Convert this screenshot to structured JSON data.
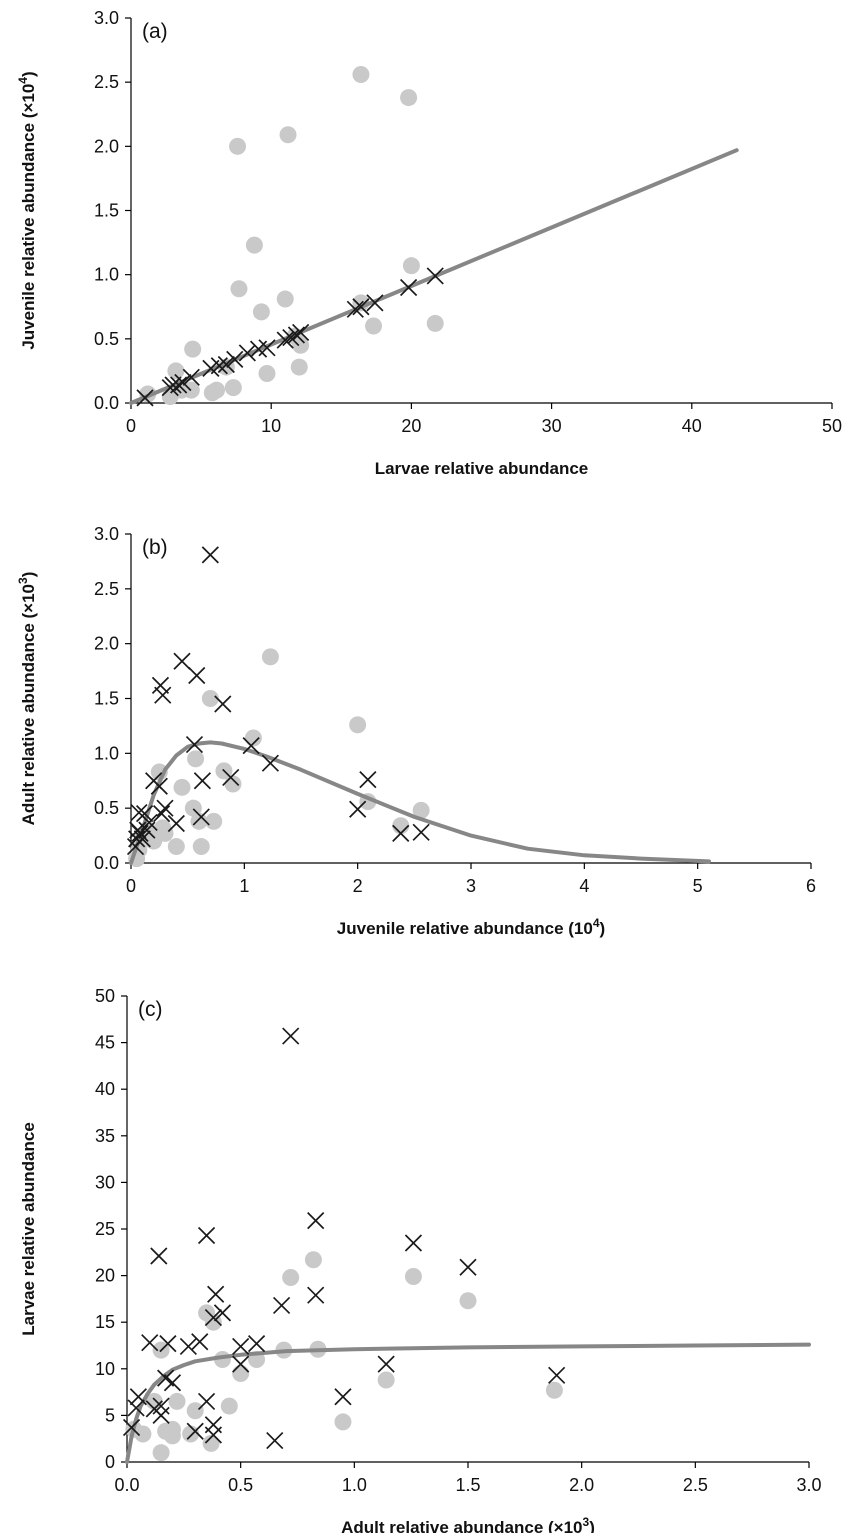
{
  "chart_data": [
    {
      "type": "scatter",
      "panel_label": "(a)",
      "xlabel": "Larvae relative abundance",
      "ylabel": "Juvenile relative abundance (×10",
      "ylabel_sup": "4",
      "ylabel_end": ")",
      "xlim": [
        0,
        50
      ],
      "ylim": [
        0,
        3.0
      ],
      "xticks": [
        0,
        10,
        20,
        30,
        40,
        50
      ],
      "xtick_labels": [
        "0",
        "10",
        "20",
        "30",
        "40",
        "50"
      ],
      "yticks": [
        0,
        0.5,
        1.0,
        1.5,
        2.0,
        2.5,
        3.0
      ],
      "ytick_labels": [
        "0.0",
        "0.5",
        "1.0",
        "1.5",
        "2.0",
        "2.5",
        "3.0"
      ],
      "grid": false,
      "series": [
        {
          "marker": "circle",
          "color": "#c9c9c9",
          "points": [
            [
              1.2,
              0.07
            ],
            [
              2.8,
              0.05
            ],
            [
              3.2,
              0.25
            ],
            [
              3.6,
              0.1
            ],
            [
              4.4,
              0.42
            ],
            [
              4.3,
              0.1
            ],
            [
              5.8,
              0.08
            ],
            [
              6.1,
              0.1
            ],
            [
              6.8,
              0.28
            ],
            [
              7.3,
              0.12
            ],
            [
              7.6,
              2.0
            ],
            [
              7.7,
              0.89
            ],
            [
              8.8,
              1.23
            ],
            [
              9.3,
              0.71
            ],
            [
              9.7,
              0.23
            ],
            [
              11.0,
              0.81
            ],
            [
              11.2,
              2.09
            ],
            [
              11.7,
              0.52
            ],
            [
              12.0,
              0.28
            ],
            [
              12.1,
              0.45
            ],
            [
              16.4,
              2.56
            ],
            [
              16.4,
              0.78
            ],
            [
              17.3,
              0.6
            ],
            [
              19.8,
              2.38
            ],
            [
              20.0,
              1.07
            ],
            [
              21.7,
              0.62
            ]
          ]
        },
        {
          "marker": "cross",
          "color": "#1a1a1a",
          "points": [
            [
              1.0,
              0.04
            ],
            [
              2.8,
              0.12
            ],
            [
              3.0,
              0.14
            ],
            [
              3.4,
              0.14
            ],
            [
              3.7,
              0.16
            ],
            [
              4.3,
              0.2
            ],
            [
              5.7,
              0.27
            ],
            [
              6.3,
              0.29
            ],
            [
              6.8,
              0.3
            ],
            [
              7.4,
              0.34
            ],
            [
              8.3,
              0.39
            ],
            [
              9.1,
              0.42
            ],
            [
              9.7,
              0.43
            ],
            [
              11.0,
              0.49
            ],
            [
              11.4,
              0.51
            ],
            [
              11.8,
              0.53
            ],
            [
              12.1,
              0.55
            ],
            [
              16.0,
              0.73
            ],
            [
              16.4,
              0.75
            ],
            [
              17.4,
              0.78
            ],
            [
              19.8,
              0.9
            ],
            [
              21.7,
              0.99
            ]
          ]
        }
      ],
      "fit_curve": [
        [
          0,
          0
        ],
        [
          43.2,
          1.97
        ]
      ]
    },
    {
      "type": "scatter",
      "panel_label": "(b)",
      "xlabel": "Juvenile relative abundance (10",
      "xlabel_sup": "4",
      "xlabel_end": ")",
      "ylabel": "Adult relative abundance (×10",
      "ylabel_sup": "3",
      "ylabel_end": ")",
      "xlim": [
        0,
        6
      ],
      "ylim": [
        0,
        3.0
      ],
      "xticks": [
        0,
        1,
        2,
        3,
        4,
        5,
        6
      ],
      "xtick_labels": [
        "0",
        "1",
        "2",
        "3",
        "4",
        "5",
        "6"
      ],
      "yticks": [
        0,
        0.5,
        1.0,
        1.5,
        2.0,
        2.5,
        3.0
      ],
      "ytick_labels": [
        "0.0",
        "0.5",
        "1.0",
        "1.5",
        "2.0",
        "2.5",
        "3.0"
      ],
      "grid": false,
      "series": [
        {
          "marker": "circle",
          "color": "#c9c9c9",
          "points": [
            [
              0.05,
              0.04
            ],
            [
              0.07,
              0.12
            ],
            [
              0.1,
              0.25
            ],
            [
              0.15,
              0.3
            ],
            [
              0.2,
              0.2
            ],
            [
              0.25,
              0.83
            ],
            [
              0.28,
              0.32
            ],
            [
              0.3,
              0.27
            ],
            [
              0.4,
              0.15
            ],
            [
              0.45,
              0.69
            ],
            [
              0.55,
              0.5
            ],
            [
              0.57,
              0.95
            ],
            [
              0.6,
              0.38
            ],
            [
              0.62,
              0.15
            ],
            [
              0.7,
              1.5
            ],
            [
              0.73,
              0.38
            ],
            [
              0.82,
              0.84
            ],
            [
              0.9,
              0.72
            ],
            [
              1.08,
              1.14
            ],
            [
              1.23,
              1.88
            ],
            [
              2.0,
              1.26
            ],
            [
              2.09,
              0.56
            ],
            [
              2.38,
              0.34
            ],
            [
              2.56,
              0.48
            ]
          ]
        },
        {
          "marker": "cross",
          "color": "#1a1a1a",
          "points": [
            [
              0.04,
              0.15
            ],
            [
              0.05,
              0.22
            ],
            [
              0.06,
              0.3
            ],
            [
              0.07,
              0.46
            ],
            [
              0.08,
              0.27
            ],
            [
              0.1,
              0.22
            ],
            [
              0.12,
              0.45
            ],
            [
              0.14,
              0.3
            ],
            [
              0.16,
              0.37
            ],
            [
              0.2,
              0.75
            ],
            [
              0.25,
              0.7
            ],
            [
              0.26,
              1.62
            ],
            [
              0.28,
              1.53
            ],
            [
              0.27,
              0.45
            ],
            [
              0.3,
              0.5
            ],
            [
              0.4,
              0.36
            ],
            [
              0.45,
              1.84
            ],
            [
              0.56,
              1.08
            ],
            [
              0.58,
              1.71
            ],
            [
              0.63,
              0.75
            ],
            [
              0.62,
              0.42
            ],
            [
              0.7,
              2.81
            ],
            [
              0.81,
              1.45
            ],
            [
              0.88,
              0.78
            ],
            [
              1.06,
              1.07
            ],
            [
              1.23,
              0.91
            ],
            [
              2.0,
              0.49
            ],
            [
              2.09,
              0.76
            ],
            [
              2.38,
              0.27
            ],
            [
              2.56,
              0.28
            ]
          ]
        }
      ],
      "fit_curve": [
        [
          0,
          0.0
        ],
        [
          0.1,
          0.3
        ],
        [
          0.2,
          0.62
        ],
        [
          0.3,
          0.85
        ],
        [
          0.4,
          0.98
        ],
        [
          0.5,
          1.06
        ],
        [
          0.6,
          1.09
        ],
        [
          0.7,
          1.1
        ],
        [
          0.8,
          1.09
        ],
        [
          1.0,
          1.04
        ],
        [
          1.2,
          0.97
        ],
        [
          1.5,
          0.85
        ],
        [
          2.0,
          0.63
        ],
        [
          2.5,
          0.42
        ],
        [
          3.0,
          0.25
        ],
        [
          3.5,
          0.13
        ],
        [
          4.0,
          0.07
        ],
        [
          4.5,
          0.04
        ],
        [
          5.1,
          0.015
        ]
      ]
    },
    {
      "type": "scatter",
      "panel_label": "(c)",
      "xlabel": "Adult relative abundance (×10",
      "xlabel_sup": "3",
      "xlabel_end": ")",
      "ylabel": "Larvae relative abundance",
      "xlim": [
        0,
        3.0
      ],
      "ylim": [
        0,
        50
      ],
      "xticks": [
        0,
        0.5,
        1.0,
        1.5,
        2.0,
        2.5,
        3.0
      ],
      "xtick_labels": [
        "0.0",
        "0.5",
        "1.0",
        "1.5",
        "2.0",
        "2.5",
        "3.0"
      ],
      "yticks": [
        0,
        5,
        10,
        15,
        20,
        25,
        30,
        35,
        40,
        45,
        50
      ],
      "ytick_labels": [
        "0",
        "5",
        "10",
        "15",
        "20",
        "25",
        "30",
        "35",
        "40",
        "45",
        "50"
      ],
      "grid": false,
      "series": [
        {
          "marker": "circle",
          "color": "#c9c9c9",
          "points": [
            [
              0.03,
              3.5
            ],
            [
              0.07,
              3.0
            ],
            [
              0.12,
              6.5
            ],
            [
              0.15,
              1.0
            ],
            [
              0.15,
              12.0
            ],
            [
              0.17,
              3.3
            ],
            [
              0.2,
              2.8
            ],
            [
              0.22,
              6.5
            ],
            [
              0.2,
              3.5
            ],
            [
              0.28,
              3.0
            ],
            [
              0.3,
              5.5
            ],
            [
              0.35,
              16.0
            ],
            [
              0.37,
              2.0
            ],
            [
              0.38,
              15.0
            ],
            [
              0.42,
              11.0
            ],
            [
              0.45,
              6.0
            ],
            [
              0.5,
              9.5
            ],
            [
              0.57,
              11.0
            ],
            [
              0.69,
              12.0
            ],
            [
              0.72,
              19.8
            ],
            [
              0.82,
              21.7
            ],
            [
              0.84,
              12.1
            ],
            [
              0.95,
              4.3
            ],
            [
              1.14,
              8.8
            ],
            [
              1.26,
              19.9
            ],
            [
              1.5,
              17.3
            ],
            [
              1.88,
              7.7
            ]
          ]
        },
        {
          "marker": "cross",
          "color": "#1a1a1a",
          "points": [
            [
              0.02,
              3.7
            ],
            [
              0.04,
              5.8
            ],
            [
              0.05,
              7.0
            ],
            [
              0.1,
              12.8
            ],
            [
              0.12,
              5.7
            ],
            [
              0.14,
              22.1
            ],
            [
              0.15,
              5.0
            ],
            [
              0.15,
              6.0
            ],
            [
              0.17,
              9.0
            ],
            [
              0.18,
              12.7
            ],
            [
              0.2,
              8.5
            ],
            [
              0.27,
              12.4
            ],
            [
              0.3,
              3.3
            ],
            [
              0.32,
              12.9
            ],
            [
              0.35,
              24.3
            ],
            [
              0.35,
              6.5
            ],
            [
              0.38,
              2.9
            ],
            [
              0.38,
              4.0
            ],
            [
              0.38,
              15.5
            ],
            [
              0.39,
              18.0
            ],
            [
              0.42,
              16.0
            ],
            [
              0.5,
              12.4
            ],
            [
              0.5,
              10.5
            ],
            [
              0.57,
              12.7
            ],
            [
              0.65,
              2.3
            ],
            [
              0.68,
              16.8
            ],
            [
              0.72,
              45.7
            ],
            [
              0.83,
              25.9
            ],
            [
              0.83,
              17.9
            ],
            [
              0.95,
              7.0
            ],
            [
              1.14,
              10.5
            ],
            [
              1.26,
              23.5
            ],
            [
              1.5,
              20.9
            ],
            [
              1.89,
              9.3
            ]
          ]
        }
      ],
      "fit_curve": [
        [
          0,
          0
        ],
        [
          0.02,
          2.7
        ],
        [
          0.04,
          4.6
        ],
        [
          0.06,
          6.0
        ],
        [
          0.09,
          7.3
        ],
        [
          0.12,
          8.3
        ],
        [
          0.16,
          9.2
        ],
        [
          0.2,
          9.9
        ],
        [
          0.25,
          10.4
        ],
        [
          0.3,
          10.8
        ],
        [
          0.4,
          11.2
        ],
        [
          0.5,
          11.5
        ],
        [
          0.7,
          11.9
        ],
        [
          1.0,
          12.1
        ],
        [
          1.5,
          12.3
        ],
        [
          2.0,
          12.4
        ],
        [
          2.5,
          12.5
        ],
        [
          3.0,
          12.6
        ]
      ]
    }
  ]
}
